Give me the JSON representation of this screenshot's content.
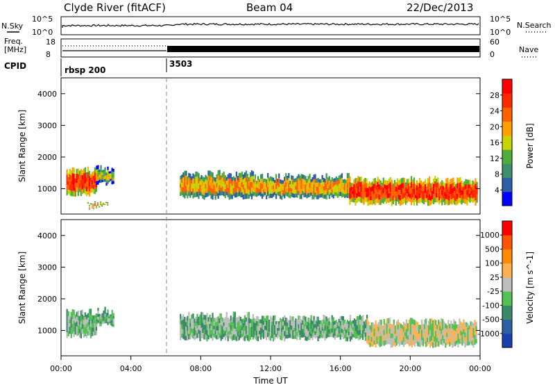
{
  "header": {
    "station": "Clyde River (fitACF)",
    "beam": "Beam 04",
    "date": "22/Dec/2013"
  },
  "top_panel": {
    "left_label": "N.Sky",
    "left_ticks": [
      "10^5",
      "10^0"
    ],
    "right_ticks": [
      "10^5",
      "10^0"
    ],
    "right_label": "N.Search"
  },
  "freq_panel": {
    "left_label_1": "Freq.",
    "left_label_2": "[MHz]",
    "left_ticks": [
      "18",
      "8"
    ],
    "right_ticks": [
      "60",
      "0"
    ],
    "right_label": "Nave"
  },
  "cpid_panel": {
    "label": "CPID",
    "segments": [
      {
        "name": "rbsp 200",
        "start_hour": 0.0
      },
      {
        "name": "3503",
        "start_hour": 6.0
      }
    ]
  },
  "colors": {
    "power": [
      "#0000ff",
      "#2d5fa8",
      "#3f8f6e",
      "#4fae3a",
      "#c8d400",
      "#ffa000",
      "#ff6000",
      "#ff2a00",
      "#ff0000"
    ],
    "velocity": [
      "#1a3fb0",
      "#2e5fa0",
      "#3a8a6a",
      "#55c055",
      "#bdbdbd",
      "#ffb050",
      "#ff8a00",
      "#ff5500",
      "#ff0000"
    ]
  },
  "chart_data": [
    {
      "type": "heatmap",
      "title": "Power",
      "xlabel": "Time UT",
      "ylabel": "Slant Range [km]",
      "xlim": [
        0,
        24
      ],
      "ylim": [
        200,
        4500
      ],
      "x_ticks": [
        "00:00",
        "04:00",
        "08:00",
        "12:00",
        "16:00",
        "20:00",
        "00:00"
      ],
      "y_ticks": [
        1000,
        2000,
        3000,
        4000
      ],
      "colorbar": {
        "label": "Power [dB]",
        "ticks": [
          "28",
          "24",
          "20",
          "16",
          "12",
          "8",
          "4"
        ],
        "range": [
          0,
          30
        ]
      },
      "regions": [
        {
          "t0": 0.3,
          "t1": 2.0,
          "r_low": 750,
          "r_high": 1700,
          "level": 26
        },
        {
          "t0": 2.0,
          "t1": 3.0,
          "r_low": 1100,
          "r_high": 1750,
          "level": 14
        },
        {
          "t0": 1.5,
          "t1": 2.7,
          "r_low": 450,
          "r_high": 600,
          "level": 20
        },
        {
          "t0": 6.8,
          "t1": 11.0,
          "r_low": 650,
          "r_high": 1600,
          "level": 18
        },
        {
          "t0": 11.0,
          "t1": 16.5,
          "r_low": 650,
          "r_high": 1500,
          "level": 20
        },
        {
          "t0": 16.5,
          "t1": 23.8,
          "r_low": 450,
          "r_high": 1400,
          "level": 26
        }
      ]
    },
    {
      "type": "heatmap",
      "title": "Velocity",
      "xlabel": "Time UT",
      "ylabel": "Slant Range [km]",
      "xlim": [
        0,
        24
      ],
      "ylim": [
        200,
        4500
      ],
      "x_ticks": [
        "00:00",
        "04:00",
        "08:00",
        "12:00",
        "16:00",
        "20:00",
        "00:00"
      ],
      "y_ticks": [
        1000,
        2000,
        3000,
        4000
      ],
      "colorbar": {
        "label": "Velocity [m s^-1]",
        "ticks": [
          "1000",
          "500",
          "100",
          "25",
          "-25",
          "-100",
          "-500",
          "-1000"
        ],
        "range": [
          -1000,
          1000
        ]
      },
      "regions": [
        {
          "t0": 0.3,
          "t1": 2.0,
          "r_low": 750,
          "r_high": 1700,
          "level": -200
        },
        {
          "t0": 2.0,
          "t1": 3.0,
          "r_low": 1100,
          "r_high": 1750,
          "level": -150
        },
        {
          "t0": 6.8,
          "t1": 11.0,
          "r_low": 650,
          "r_high": 1600,
          "level": -300
        },
        {
          "t0": 11.0,
          "t1": 17.5,
          "r_low": 650,
          "r_high": 1500,
          "level": -250
        },
        {
          "t0": 17.5,
          "t1": 23.8,
          "r_low": 450,
          "r_high": 1400,
          "level": 50
        }
      ]
    }
  ]
}
